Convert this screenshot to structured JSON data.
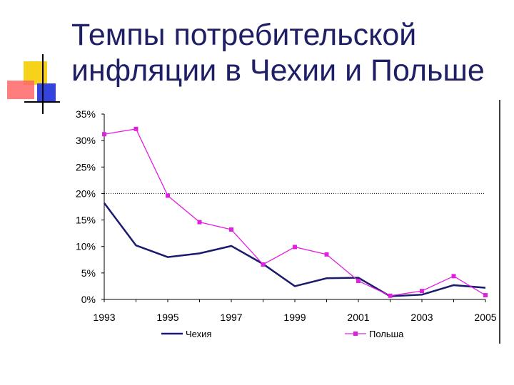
{
  "slide": {
    "title_line1": "Темпы потребительской",
    "title_line2": "инфляции в Чехии и Польше"
  },
  "colors": {
    "title": "#1f1f66",
    "czech": "#1a1a6e",
    "poland": "#e020e0",
    "deco_yellow": "#f7d21a",
    "deco_red": "#ff6666",
    "deco_blue": "#3344dd"
  },
  "chart_data": {
    "type": "line",
    "title": "",
    "xlabel": "",
    "ylabel": "",
    "x": [
      1993,
      1994,
      1995,
      1996,
      1997,
      1998,
      1999,
      2000,
      2001,
      2002,
      2003,
      2004,
      2005
    ],
    "x_tick_labels": [
      "1993",
      "1995",
      "1997",
      "1999",
      "2001",
      "2003",
      "2005"
    ],
    "y_tick_labels": [
      "35%",
      "30%",
      "25%",
      "20%",
      "15%",
      "10%",
      "5%",
      "0%"
    ],
    "ylim": [
      0,
      35
    ],
    "reference_line": 20,
    "grid": false,
    "legend_position": "bottom",
    "series": [
      {
        "name": "Чехия",
        "values": [
          18.2,
          10.2,
          8.0,
          8.7,
          10.1,
          6.7,
          2.5,
          4.0,
          4.1,
          0.6,
          0.9,
          2.7,
          2.2
        ]
      },
      {
        "name": "Польша",
        "values": [
          31.2,
          32.2,
          19.6,
          14.6,
          13.2,
          6.6,
          9.9,
          8.5,
          3.5,
          0.7,
          1.6,
          4.4,
          0.8
        ]
      }
    ]
  }
}
